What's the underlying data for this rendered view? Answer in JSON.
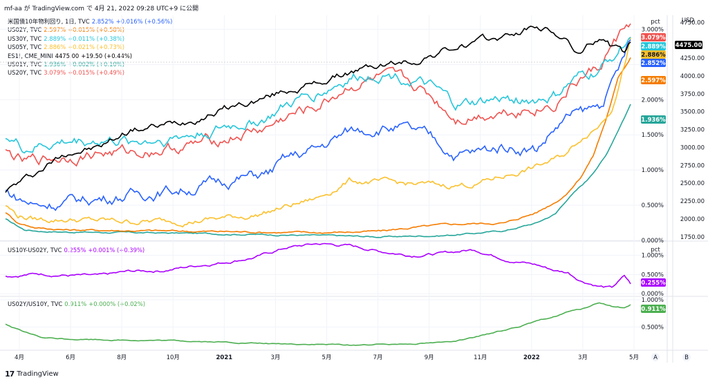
{
  "header": "mf-aa が TradingView.com で 4月 21, 2022 09:28 UTC+9 に公開",
  "footer": {
    "logo": "17",
    "brand": "TradingView"
  },
  "colors": {
    "jp10": "#2962ff",
    "us02": "#f57c00",
    "us30": "#26c6da",
    "us05": "#fbc02d",
    "es": "#000000",
    "us01": "#26a69a",
    "us20": "#ef5350",
    "spread1": "#aa00ff",
    "spread2": "#4caf50",
    "grid": "#f0f3fa",
    "axis": "#e0e3eb"
  },
  "chart_data": [
    {
      "type": "line",
      "title": "",
      "pane": "main",
      "x_ticks": [
        "4月",
        "6月",
        "8月",
        "10月",
        "2021",
        "3月",
        "5月",
        "7月",
        "9月",
        "11月",
        "2022",
        "3月",
        "5月"
      ],
      "y_left_unit": "pct",
      "y_left_ticks": [
        "3.000%",
        "2.500%",
        "2.000%",
        "1.500%",
        "1.000%",
        "0.500%",
        "0.000%"
      ],
      "y_left_range": [
        0,
        3.2
      ],
      "y_right_unit": "USD",
      "y_right_ticks": [
        "4750.00",
        "4250.00",
        "4000.00",
        "3750.00",
        "3500.00",
        "3250.00",
        "3000.00",
        "2750.00",
        "2500.00",
        "2250.00",
        "2000.00",
        "1750.00"
      ],
      "y_right_range": [
        1700,
        4850
      ],
      "current_usd_label": "4475.00",
      "legend": [
        {
          "key": "jp10",
          "name": "米国債10年物利回り, 1日, TVC",
          "value": "2.852%",
          "change": "+0.016% (+0.56%)"
        },
        {
          "key": "us02",
          "name": "US02Y, TVC",
          "value": "2.597%",
          "change": "+0.015% (+0.58%)"
        },
        {
          "key": "us30",
          "name": "US30Y, TVC",
          "value": "2.889%",
          "change": "+0.011% (+0.38%)"
        },
        {
          "key": "us05",
          "name": "US05Y, TVC",
          "value": "2.886%",
          "change": "+0.021% (+0.73%)"
        },
        {
          "key": "es",
          "name": "ES1!, CME_MINI",
          "value": "4475.00",
          "change": "+19.50 (+0.44%)"
        },
        {
          "key": "us01",
          "name": "US01Y, TVC",
          "value": "1.936%",
          "change": "+0.002% (+0.10%)"
        },
        {
          "key": "us20",
          "name": "US20Y, TVC",
          "value": "3.079%",
          "change": "+0.015% (+0.49%)"
        }
      ],
      "series": [
        {
          "key": "jp10",
          "axis": "left",
          "x": [
            0,
            0.02,
            0.05,
            0.1,
            0.15,
            0.2,
            0.3,
            0.35,
            0.42,
            0.45,
            0.5,
            0.55,
            0.6,
            0.63,
            0.68,
            0.72,
            0.76,
            0.8,
            0.85,
            0.88,
            0.9,
            0.92,
            0.95,
            0.97,
            0.99,
            1.0
          ],
          "values": [
            0.7,
            0.6,
            0.5,
            0.55,
            0.6,
            0.65,
            0.75,
            0.85,
            0.95,
            1.15,
            1.3,
            1.55,
            1.62,
            1.6,
            1.45,
            1.22,
            1.25,
            1.35,
            1.3,
            1.6,
            1.75,
            1.8,
            1.9,
            2.2,
            2.6,
            2.852
          ]
        },
        {
          "key": "us02",
          "axis": "left",
          "x": [
            0,
            0.02,
            0.05,
            0.1,
            0.3,
            0.5,
            0.6,
            0.65,
            0.7,
            0.75,
            0.8,
            0.85,
            0.88,
            0.9,
            0.92,
            0.94,
            0.96,
            0.98,
            1.0
          ],
          "values": [
            0.4,
            0.25,
            0.18,
            0.15,
            0.13,
            0.11,
            0.13,
            0.18,
            0.22,
            0.24,
            0.25,
            0.4,
            0.55,
            0.68,
            0.9,
            1.2,
            1.7,
            2.3,
            2.597
          ]
        },
        {
          "key": "us30",
          "axis": "left",
          "x": [
            0,
            0.03,
            0.06,
            0.1,
            0.15,
            0.2,
            0.3,
            0.35,
            0.42,
            0.45,
            0.5,
            0.55,
            0.6,
            0.65,
            0.68,
            0.72,
            0.76,
            0.8,
            0.85,
            0.88,
            0.9,
            0.92,
            0.95,
            0.97,
            0.99,
            1.0
          ],
          "values": [
            1.5,
            1.3,
            1.35,
            1.4,
            1.43,
            1.4,
            1.5,
            1.6,
            1.75,
            1.9,
            2.1,
            2.3,
            2.4,
            2.3,
            2.15,
            1.9,
            1.95,
            2.0,
            2.0,
            2.05,
            2.2,
            2.3,
            2.4,
            2.6,
            2.8,
            2.889
          ]
        },
        {
          "key": "us05",
          "axis": "left",
          "x": [
            0,
            0.02,
            0.05,
            0.1,
            0.15,
            0.2,
            0.3,
            0.4,
            0.5,
            0.55,
            0.6,
            0.65,
            0.7,
            0.75,
            0.8,
            0.85,
            0.88,
            0.9,
            0.92,
            0.95,
            0.97,
            0.99,
            1.0
          ],
          "values": [
            0.5,
            0.35,
            0.3,
            0.3,
            0.28,
            0.27,
            0.28,
            0.36,
            0.6,
            0.85,
            0.82,
            0.8,
            0.78,
            0.8,
            0.92,
            1.05,
            1.15,
            1.25,
            1.45,
            1.65,
            1.9,
            2.5,
            2.886
          ]
        },
        {
          "key": "us01",
          "axis": "left",
          "x": [
            0,
            0.03,
            0.06,
            0.1,
            0.3,
            0.5,
            0.6,
            0.7,
            0.75,
            0.8,
            0.85,
            0.88,
            0.9,
            0.93,
            0.96,
            1.0
          ],
          "values": [
            0.3,
            0.15,
            0.13,
            0.12,
            0.1,
            0.07,
            0.05,
            0.07,
            0.1,
            0.14,
            0.25,
            0.38,
            0.6,
            0.85,
            1.2,
            1.936
          ]
        },
        {
          "key": "us20",
          "axis": "left",
          "x": [
            0,
            0.03,
            0.06,
            0.1,
            0.15,
            0.2,
            0.3,
            0.35,
            0.42,
            0.45,
            0.5,
            0.55,
            0.6,
            0.65,
            0.68,
            0.72,
            0.76,
            0.8,
            0.85,
            0.88,
            0.9,
            0.92,
            0.95,
            0.97,
            0.99,
            1.0
          ],
          "values": [
            1.25,
            1.1,
            1.15,
            1.2,
            1.25,
            1.25,
            1.35,
            1.45,
            1.6,
            1.75,
            1.9,
            2.2,
            2.3,
            2.2,
            2.05,
            1.75,
            1.8,
            1.85,
            1.9,
            1.95,
            2.15,
            2.3,
            2.45,
            2.75,
            3.0,
            3.079
          ]
        },
        {
          "key": "es",
          "axis": "right",
          "x": [
            0,
            0.02,
            0.05,
            0.1,
            0.15,
            0.2,
            0.25,
            0.3,
            0.35,
            0.4,
            0.45,
            0.5,
            0.55,
            0.6,
            0.65,
            0.7,
            0.75,
            0.8,
            0.85,
            0.88,
            0.9,
            0.92,
            0.95,
            0.97,
            0.99,
            1.0
          ],
          "values": [
            2400,
            2500,
            2650,
            2950,
            3000,
            3250,
            3300,
            3400,
            3550,
            3650,
            3800,
            3900,
            4050,
            4150,
            4200,
            4350,
            4450,
            4550,
            4700,
            4600,
            4450,
            4300,
            4550,
            4400,
            4300,
            4475
          ]
        }
      ]
    },
    {
      "type": "line",
      "pane": "spread1",
      "y_unit": "pct",
      "y_ticks": [
        "1.000%",
        "0.500%",
        "0.000%"
      ],
      "y_range": [
        -0.05,
        1.35
      ],
      "legend": {
        "name": "US10Y-US02Y, TVC",
        "value": "0.255%",
        "change": "+0.001% (+0.39%)"
      },
      "series": [
        {
          "key": "spread1",
          "x": [
            0,
            0.05,
            0.1,
            0.15,
            0.2,
            0.25,
            0.3,
            0.35,
            0.4,
            0.45,
            0.5,
            0.55,
            0.6,
            0.65,
            0.7,
            0.75,
            0.8,
            0.85,
            0.88,
            0.9,
            0.92,
            0.95,
            0.97,
            0.99,
            1.0
          ],
          "values": [
            0.45,
            0.52,
            0.48,
            0.46,
            0.58,
            0.6,
            0.72,
            0.82,
            0.95,
            1.2,
            1.3,
            1.25,
            1.1,
            1.0,
            1.05,
            1.15,
            0.9,
            0.75,
            0.6,
            0.55,
            0.35,
            0.2,
            0.15,
            0.45,
            0.255
          ]
        }
      ]
    },
    {
      "type": "line",
      "pane": "spread2",
      "y_unit": "pct",
      "y_ticks": [
        "1.000%",
        "0.500%"
      ],
      "y_range": [
        0.1,
        1.05
      ],
      "legend": {
        "name": "US02Y/US10Y, TVC",
        "value": "0.911%",
        "change": "+0.000% (+0.02%)"
      },
      "series": [
        {
          "key": "spread2",
          "x": [
            0,
            0.03,
            0.06,
            0.1,
            0.2,
            0.3,
            0.4,
            0.5,
            0.55,
            0.6,
            0.65,
            0.7,
            0.75,
            0.8,
            0.85,
            0.88,
            0.9,
            0.92,
            0.95,
            0.97,
            0.99,
            1.0
          ],
          "values": [
            0.55,
            0.4,
            0.3,
            0.28,
            0.26,
            0.24,
            0.2,
            0.18,
            0.17,
            0.18,
            0.2,
            0.22,
            0.3,
            0.45,
            0.6,
            0.7,
            0.78,
            0.82,
            0.95,
            0.88,
            0.85,
            0.911
          ]
        }
      ]
    }
  ],
  "right_axis_buttons": {
    "a": "A",
    "b": "B"
  }
}
